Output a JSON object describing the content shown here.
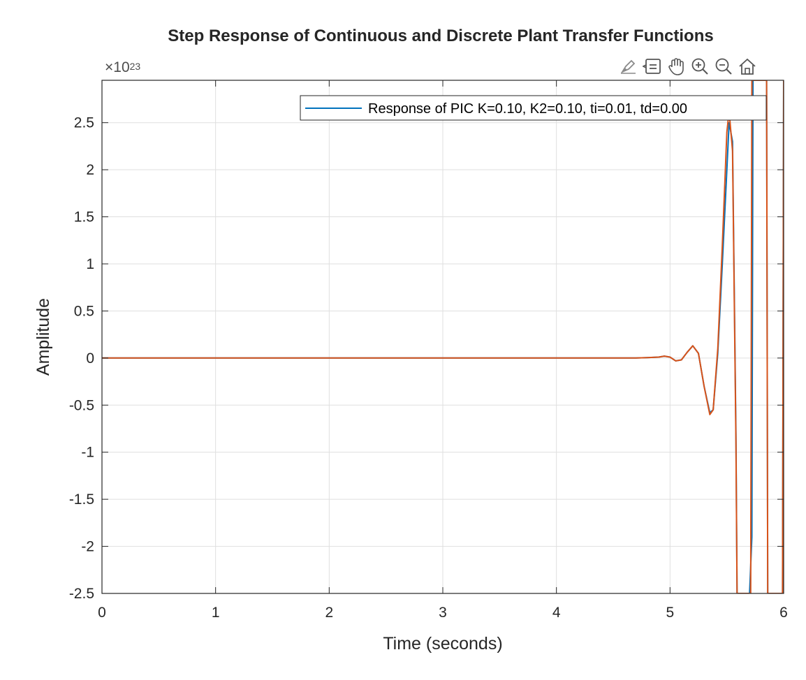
{
  "chart_data": {
    "type": "line",
    "title": "Step Response of Continuous and Discrete Plant Transfer Functions",
    "xlabel": "Time  (seconds)",
    "ylabel": "Amplitude",
    "y_exponent_base": "×10",
    "y_exponent_power": "23",
    "xlim": [
      0,
      6
    ],
    "ylim": [
      -2.5,
      2.95
    ],
    "xticks": [
      0,
      1,
      2,
      3,
      4,
      5,
      6
    ],
    "xtick_labels": [
      "0",
      "1",
      "2",
      "3",
      "4",
      "5",
      "6"
    ],
    "yticks": [
      -2.5,
      -2,
      -1.5,
      -1,
      -0.5,
      0,
      0.5,
      1,
      1.5,
      2,
      2.5
    ],
    "ytick_labels": [
      "-2.5",
      "-2",
      "-1.5",
      "-1",
      "-0.5",
      "0",
      "0.5",
      "1",
      "1.5",
      "2",
      "2.5"
    ],
    "grid": true,
    "legend_position": "top-right",
    "legend_entries": [
      "Response of PIC K=0.10, K2=0.10, ti=0.01, td=0.00"
    ],
    "series": [
      {
        "name": "Response of PIC K=0.10, K2=0.10, ti=0.01, td=0.00",
        "color": "#0072BD",
        "x": [
          0,
          4.7,
          4.8,
          4.9,
          4.95,
          5.0,
          5.05,
          5.1,
          5.15,
          5.2,
          5.25,
          5.3,
          5.35,
          5.38,
          5.42,
          5.46,
          5.5,
          5.52,
          5.55,
          5.58,
          5.59,
          5.6,
          5.7,
          5.72,
          5.73,
          5.74,
          5.84,
          5.85,
          5.86,
          5.99,
          6.0
        ],
        "y": [
          0,
          0,
          0.005,
          0.01,
          0.02,
          0.01,
          -0.03,
          -0.02,
          0.06,
          0.13,
          0.05,
          -0.3,
          -0.58,
          -0.55,
          0.05,
          1.0,
          2.0,
          2.5,
          2.3,
          -0.8,
          -2.5,
          -2.5,
          -2.5,
          -1.9,
          2.95,
          2.95,
          2.95,
          2.95,
          -2.5,
          -2.5,
          2.95
        ]
      },
      {
        "name": "",
        "color": "#D95319",
        "x": [
          0,
          4.7,
          4.8,
          4.9,
          4.95,
          5.0,
          5.05,
          5.1,
          5.15,
          5.2,
          5.25,
          5.3,
          5.35,
          5.38,
          5.42,
          5.46,
          5.5,
          5.52,
          5.55,
          5.58,
          5.59,
          5.6,
          5.7,
          5.71,
          5.72,
          5.73,
          5.84,
          5.85,
          5.86,
          5.99,
          6.0
        ],
        "y": [
          0,
          0,
          0.005,
          0.01,
          0.02,
          0.01,
          -0.03,
          -0.02,
          0.06,
          0.13,
          0.05,
          -0.3,
          -0.6,
          -0.55,
          0.1,
          1.2,
          2.4,
          2.62,
          2.2,
          -0.9,
          -2.5,
          -2.5,
          -2.5,
          -2.5,
          2.95,
          2.95,
          2.95,
          2.95,
          -2.5,
          -2.5,
          2.95
        ]
      }
    ]
  },
  "toolbar": {
    "icons": [
      "brush-icon",
      "datatip-icon",
      "pan-icon",
      "zoom-in-icon",
      "zoom-out-icon",
      "home-icon"
    ]
  },
  "colors": {
    "axis": "#262626",
    "grid": "#dfdfdf",
    "series1": "#0072BD",
    "series2": "#D95319"
  }
}
